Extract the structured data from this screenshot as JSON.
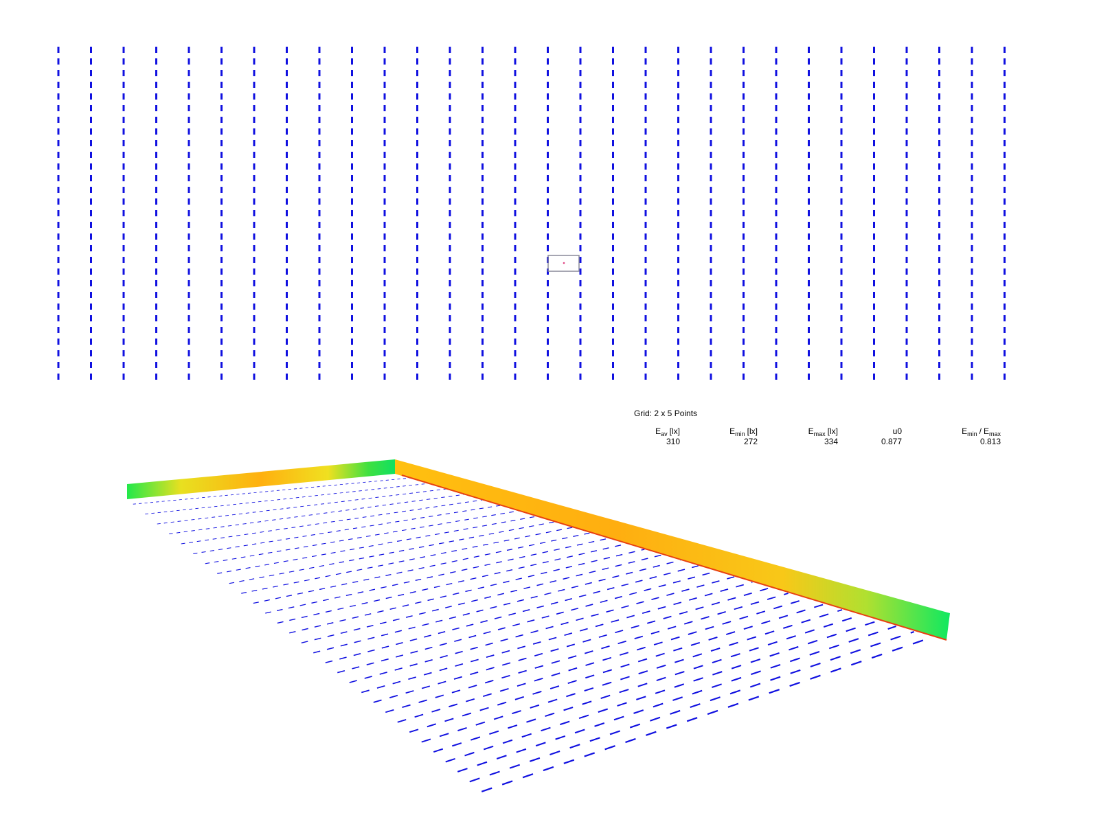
{
  "grid_label": "Grid: 2 x 5 Points",
  "results": {
    "columns": [
      {
        "main": "E",
        "sub": "av",
        "unit": "[lx]"
      },
      {
        "main": "E",
        "sub": "min",
        "unit": "[lx]"
      },
      {
        "main": "E",
        "sub": "max",
        "unit": "[lx]"
      },
      {
        "main": "u0"
      },
      {
        "main": "E",
        "sub": "min",
        "sep": "/",
        "main2": "E",
        "sub2": "max"
      }
    ],
    "values": [
      310,
      272,
      334,
      0.877,
      0.813
    ]
  }
}
